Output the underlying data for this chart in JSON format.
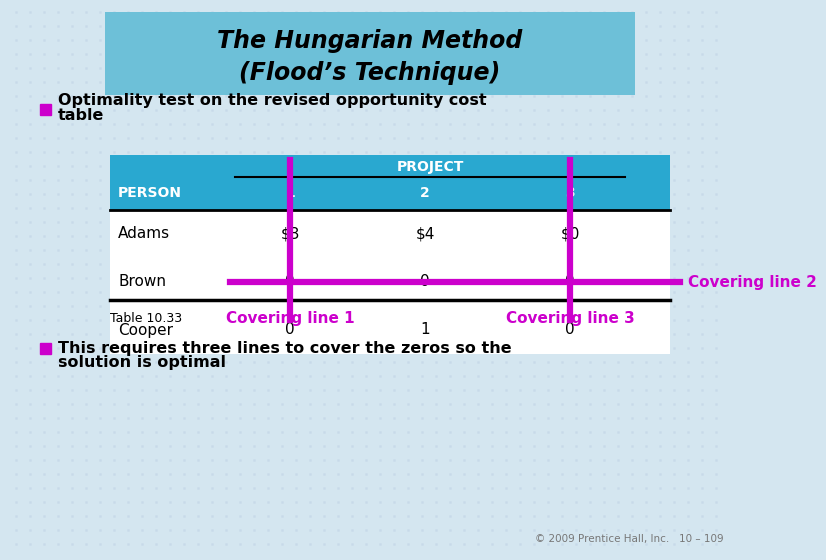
{
  "title_line1": "The Hungarian Method",
  "title_line2": "(Flood’s Technique)",
  "title_bg": "#6DC0D8",
  "slide_bg": "#D4E6F0",
  "table_header_bg": "#29A8D0",
  "bullet_color": "#CC00CC",
  "project_label": "PROJECT",
  "col_headers": [
    "PERSON",
    "1",
    "2",
    "3"
  ],
  "rows": [
    [
      "Adams",
      "$3",
      "$4",
      "$0"
    ],
    [
      "Brown",
      "0",
      "0",
      "0"
    ],
    [
      "Cooper",
      "0",
      "1",
      "0"
    ]
  ],
  "table_note": "Table 10.33",
  "covering_line1_label": "Covering line 1",
  "covering_line2_label": "Covering line 2",
  "covering_line3_label": "Covering line 3",
  "covering_color": "#CC00CC",
  "copyright": "© 2009 Prentice Hall, Inc.   10 – 109",
  "grid_color": "#C5D8E8"
}
